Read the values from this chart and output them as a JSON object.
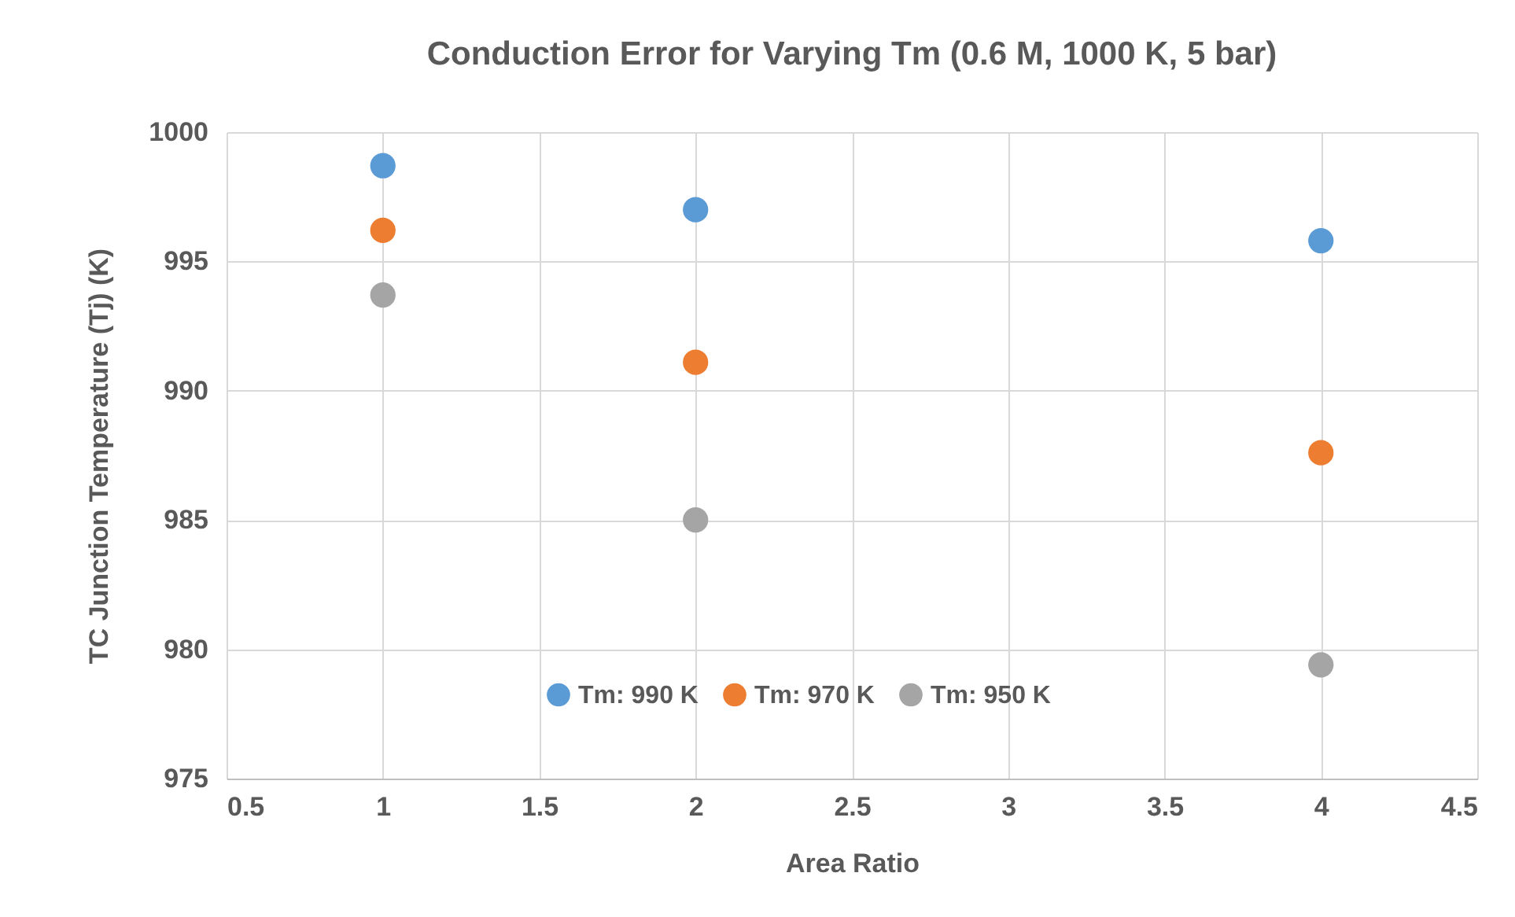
{
  "chart_data": {
    "type": "scatter",
    "title": "Conduction Error for Varying Tm (0.6 M, 1000 K, 5 bar)",
    "xlabel": "Area Ratio",
    "ylabel": "TC Junction Temperature (Tj) (K)",
    "x": [
      1,
      2,
      4
    ],
    "series": [
      {
        "name": "Tm: 990 K",
        "color": "#5b9bd5",
        "values": [
          998.7,
          997.0,
          995.8
        ]
      },
      {
        "name": "Tm: 970 K",
        "color": "#ed7d31",
        "values": [
          996.2,
          991.1,
          987.6
        ]
      },
      {
        "name": "Tm: 950 K",
        "color": "#a5a5a5",
        "values": [
          993.7,
          985.0,
          979.4
        ]
      }
    ],
    "xlim": [
      0.5,
      4.5
    ],
    "xticks": [
      0.5,
      1,
      1.5,
      2,
      2.5,
      3,
      3.5,
      4,
      4.5
    ],
    "ylim": [
      975,
      1000
    ],
    "yticks": [
      975,
      980,
      985,
      990,
      995,
      1000
    ],
    "grid": true,
    "legend": "bottom",
    "marker": "circle"
  }
}
